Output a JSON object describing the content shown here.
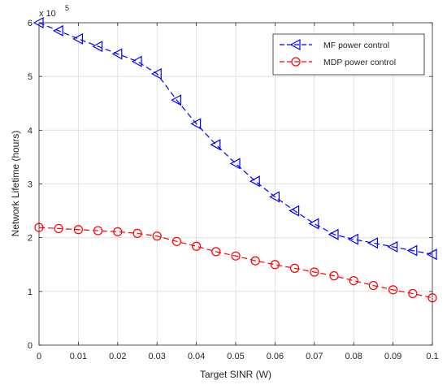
{
  "chart_data": {
    "type": "line",
    "xlabel": "Target SINR (W)",
    "ylabel": "Network Lifetime (hours)",
    "y_exponent_label": "x 10",
    "y_exponent_power": "5",
    "xlim": [
      0,
      0.1
    ],
    "ylim": [
      0,
      6
    ],
    "x_ticks": [
      0,
      0.01,
      0.02,
      0.03,
      0.04,
      0.05,
      0.06,
      0.07,
      0.08,
      0.09,
      0.1
    ],
    "x_tick_labels": [
      "0",
      "0.01",
      "0.02",
      "0.03",
      "0.04",
      "0.05",
      "0.06",
      "0.07",
      "0.08",
      "0.09",
      "0.1"
    ],
    "y_ticks": [
      0,
      1,
      2,
      3,
      4,
      5,
      6
    ],
    "y_tick_labels": [
      "0",
      "1",
      "2",
      "3",
      "4",
      "5",
      "6"
    ],
    "grid": true,
    "legend_position": "top-right",
    "x": [
      0,
      0.005,
      0.01,
      0.015,
      0.02,
      0.025,
      0.03,
      0.035,
      0.04,
      0.045,
      0.05,
      0.055,
      0.06,
      0.065,
      0.07,
      0.075,
      0.08,
      0.085,
      0.09,
      0.095,
      0.1
    ],
    "series": [
      {
        "name": "MF power control",
        "color": "#0000ff",
        "marker": "triangle-left",
        "line_style": "dashed",
        "values": [
          6.0,
          5.85,
          5.7,
          5.56,
          5.42,
          5.28,
          5.05,
          4.56,
          4.12,
          3.73,
          3.38,
          3.05,
          2.76,
          2.5,
          2.26,
          2.06,
          1.97,
          1.9,
          1.83,
          1.76,
          1.69
        ]
      },
      {
        "name": "MDP power control",
        "color": "#ff0000",
        "marker": "circle",
        "line_style": "dashed",
        "values": [
          2.19,
          2.17,
          2.15,
          2.13,
          2.11,
          2.08,
          2.03,
          1.93,
          1.84,
          1.74,
          1.66,
          1.57,
          1.5,
          1.43,
          1.36,
          1.29,
          1.2,
          1.11,
          1.03,
          0.96,
          0.88
        ]
      }
    ]
  }
}
